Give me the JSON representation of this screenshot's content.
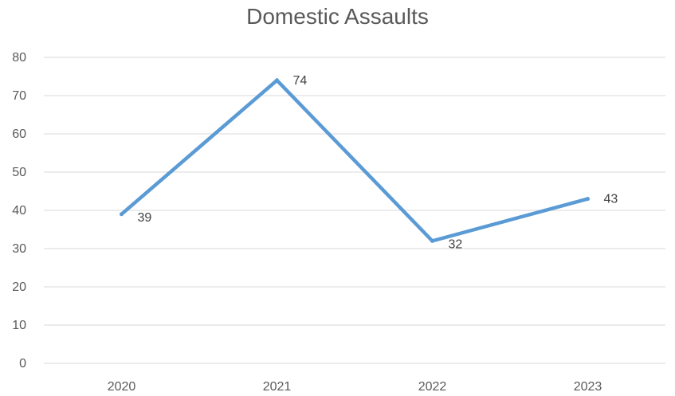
{
  "chart_data": {
    "type": "line",
    "title": "Domestic Assaults",
    "categories": [
      "2020",
      "2021",
      "2022",
      "2023"
    ],
    "series": [
      {
        "values": [
          39,
          74,
          32,
          43
        ],
        "data_labels": [
          "39",
          "74",
          "32",
          "43"
        ]
      }
    ],
    "ylim": [
      0,
      80
    ],
    "y_ticks": [
      "0",
      "10",
      "20",
      "30",
      "40",
      "50",
      "60",
      "70",
      "80"
    ],
    "grid": true,
    "legend": "none",
    "xlabel": "",
    "ylabel": "",
    "colors": {
      "line": "#5B9BD5",
      "grid": "#D9D9D9",
      "text": "#595959"
    }
  }
}
